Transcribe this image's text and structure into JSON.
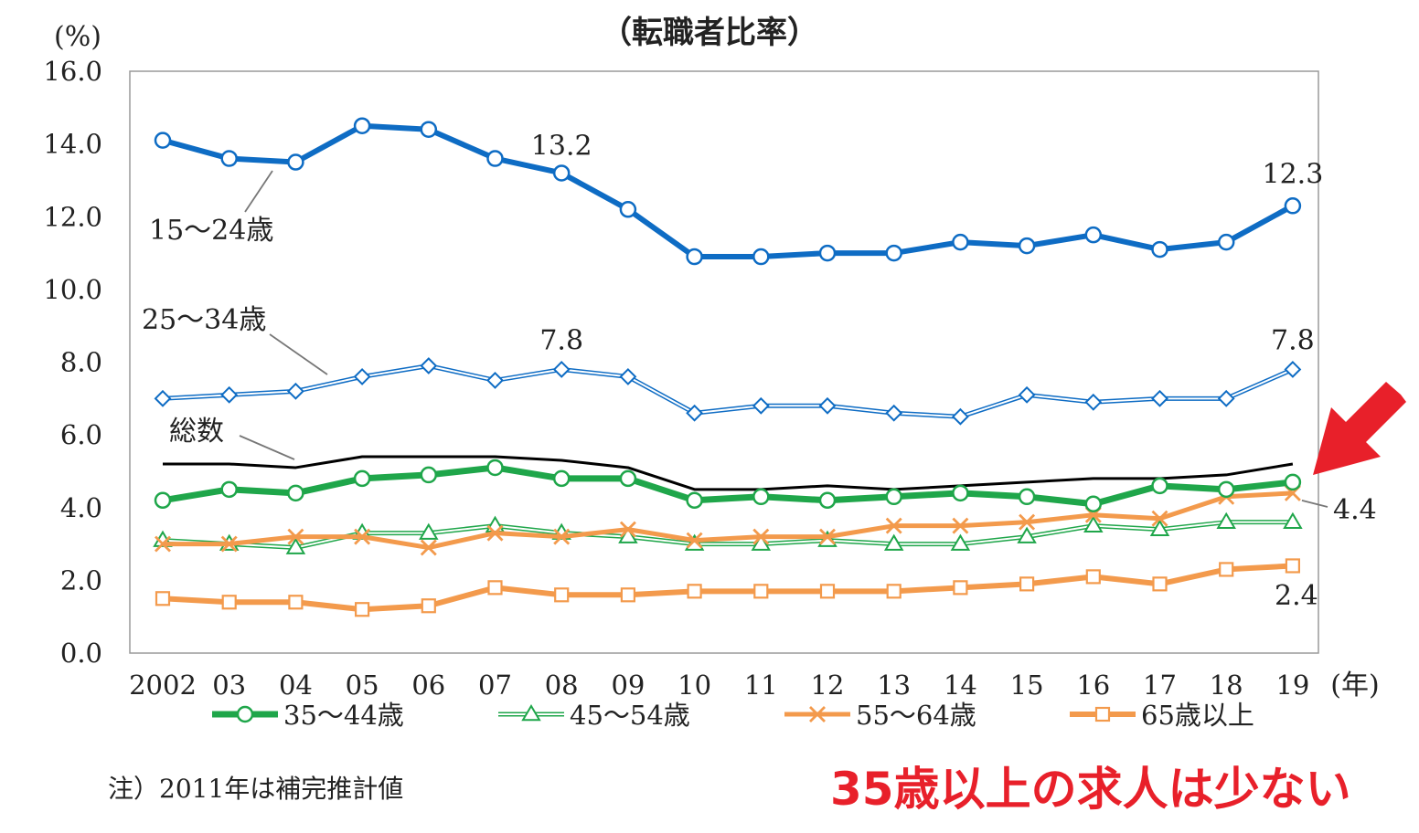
{
  "chart_data": {
    "type": "line",
    "title": "（転職者比率）",
    "unit_label": "(%)",
    "x_unit_label": "(年)",
    "x": [
      "2002",
      "03",
      "04",
      "05",
      "06",
      "07",
      "08",
      "09",
      "10",
      "11",
      "12",
      "13",
      "14",
      "15",
      "16",
      "17",
      "18",
      "19"
    ],
    "ylim": [
      0,
      16
    ],
    "yticks": [
      "0.0",
      "2.0",
      "4.0",
      "6.0",
      "8.0",
      "10.0",
      "12.0",
      "14.0",
      "16.0"
    ],
    "grid": false,
    "legend_position": "bottom",
    "series": [
      {
        "name": "15～24歳",
        "key": "age15_24",
        "color": "#0e6cc4",
        "values": [
          14.1,
          13.6,
          13.5,
          14.5,
          14.4,
          13.6,
          13.2,
          12.2,
          10.9,
          10.9,
          11.0,
          11.0,
          11.3,
          11.2,
          11.5,
          11.1,
          11.3,
          12.3
        ]
      },
      {
        "name": "25～34歳",
        "key": "age25_34",
        "color": "#0e6cc4",
        "values": [
          7.0,
          7.1,
          7.2,
          7.6,
          7.9,
          7.5,
          7.8,
          7.6,
          6.6,
          6.8,
          6.8,
          6.6,
          6.5,
          7.1,
          6.9,
          7.0,
          7.0,
          7.8
        ]
      },
      {
        "name": "総数",
        "key": "total",
        "color": "#000000",
        "values": [
          5.2,
          5.2,
          5.1,
          5.4,
          5.4,
          5.4,
          5.3,
          5.1,
          4.5,
          4.5,
          4.6,
          4.5,
          4.6,
          4.7,
          4.8,
          4.8,
          4.9,
          5.2
        ]
      },
      {
        "name": "35～44歳",
        "key": "age35_44",
        "color": "#1fa64a",
        "values": [
          4.2,
          4.5,
          4.4,
          4.8,
          4.9,
          5.1,
          4.8,
          4.8,
          4.2,
          4.3,
          4.2,
          4.3,
          4.4,
          4.3,
          4.1,
          4.6,
          4.5,
          4.7
        ]
      },
      {
        "name": "45～54歳",
        "key": "age45_54",
        "color": "#1fa64a",
        "values": [
          3.1,
          3.0,
          2.9,
          3.3,
          3.3,
          3.5,
          3.3,
          3.2,
          3.0,
          3.0,
          3.1,
          3.0,
          3.0,
          3.2,
          3.5,
          3.4,
          3.6,
          3.6
        ]
      },
      {
        "name": "55～64歳",
        "key": "age55_64",
        "color": "#f39a4c",
        "values": [
          3.0,
          3.0,
          3.2,
          3.2,
          2.9,
          3.3,
          3.2,
          3.4,
          3.1,
          3.2,
          3.2,
          3.5,
          3.5,
          3.6,
          3.8,
          3.7,
          4.3,
          4.4
        ]
      },
      {
        "name": "65歳以上",
        "key": "age65plus",
        "color": "#f39a4c",
        "values": [
          1.5,
          1.4,
          1.4,
          1.2,
          1.3,
          1.8,
          1.6,
          1.6,
          1.7,
          1.7,
          1.7,
          1.7,
          1.8,
          1.9,
          2.1,
          1.9,
          2.3,
          2.4
        ]
      }
    ],
    "legend": [
      "35～44歳",
      "45～54歳",
      "55～64歳",
      "65歳以上"
    ],
    "annotations": {
      "age15_24_08": "13.2",
      "age15_24_19": "12.3",
      "age25_34_08": "7.8",
      "age25_34_19": "7.8",
      "age55_64_19": "4.4",
      "age65plus_19": "2.4"
    },
    "callout_arrow_color": "#e8202a"
  },
  "note": "注）2011年は補完推計値",
  "callout": "35歳以上の求人は少ない"
}
